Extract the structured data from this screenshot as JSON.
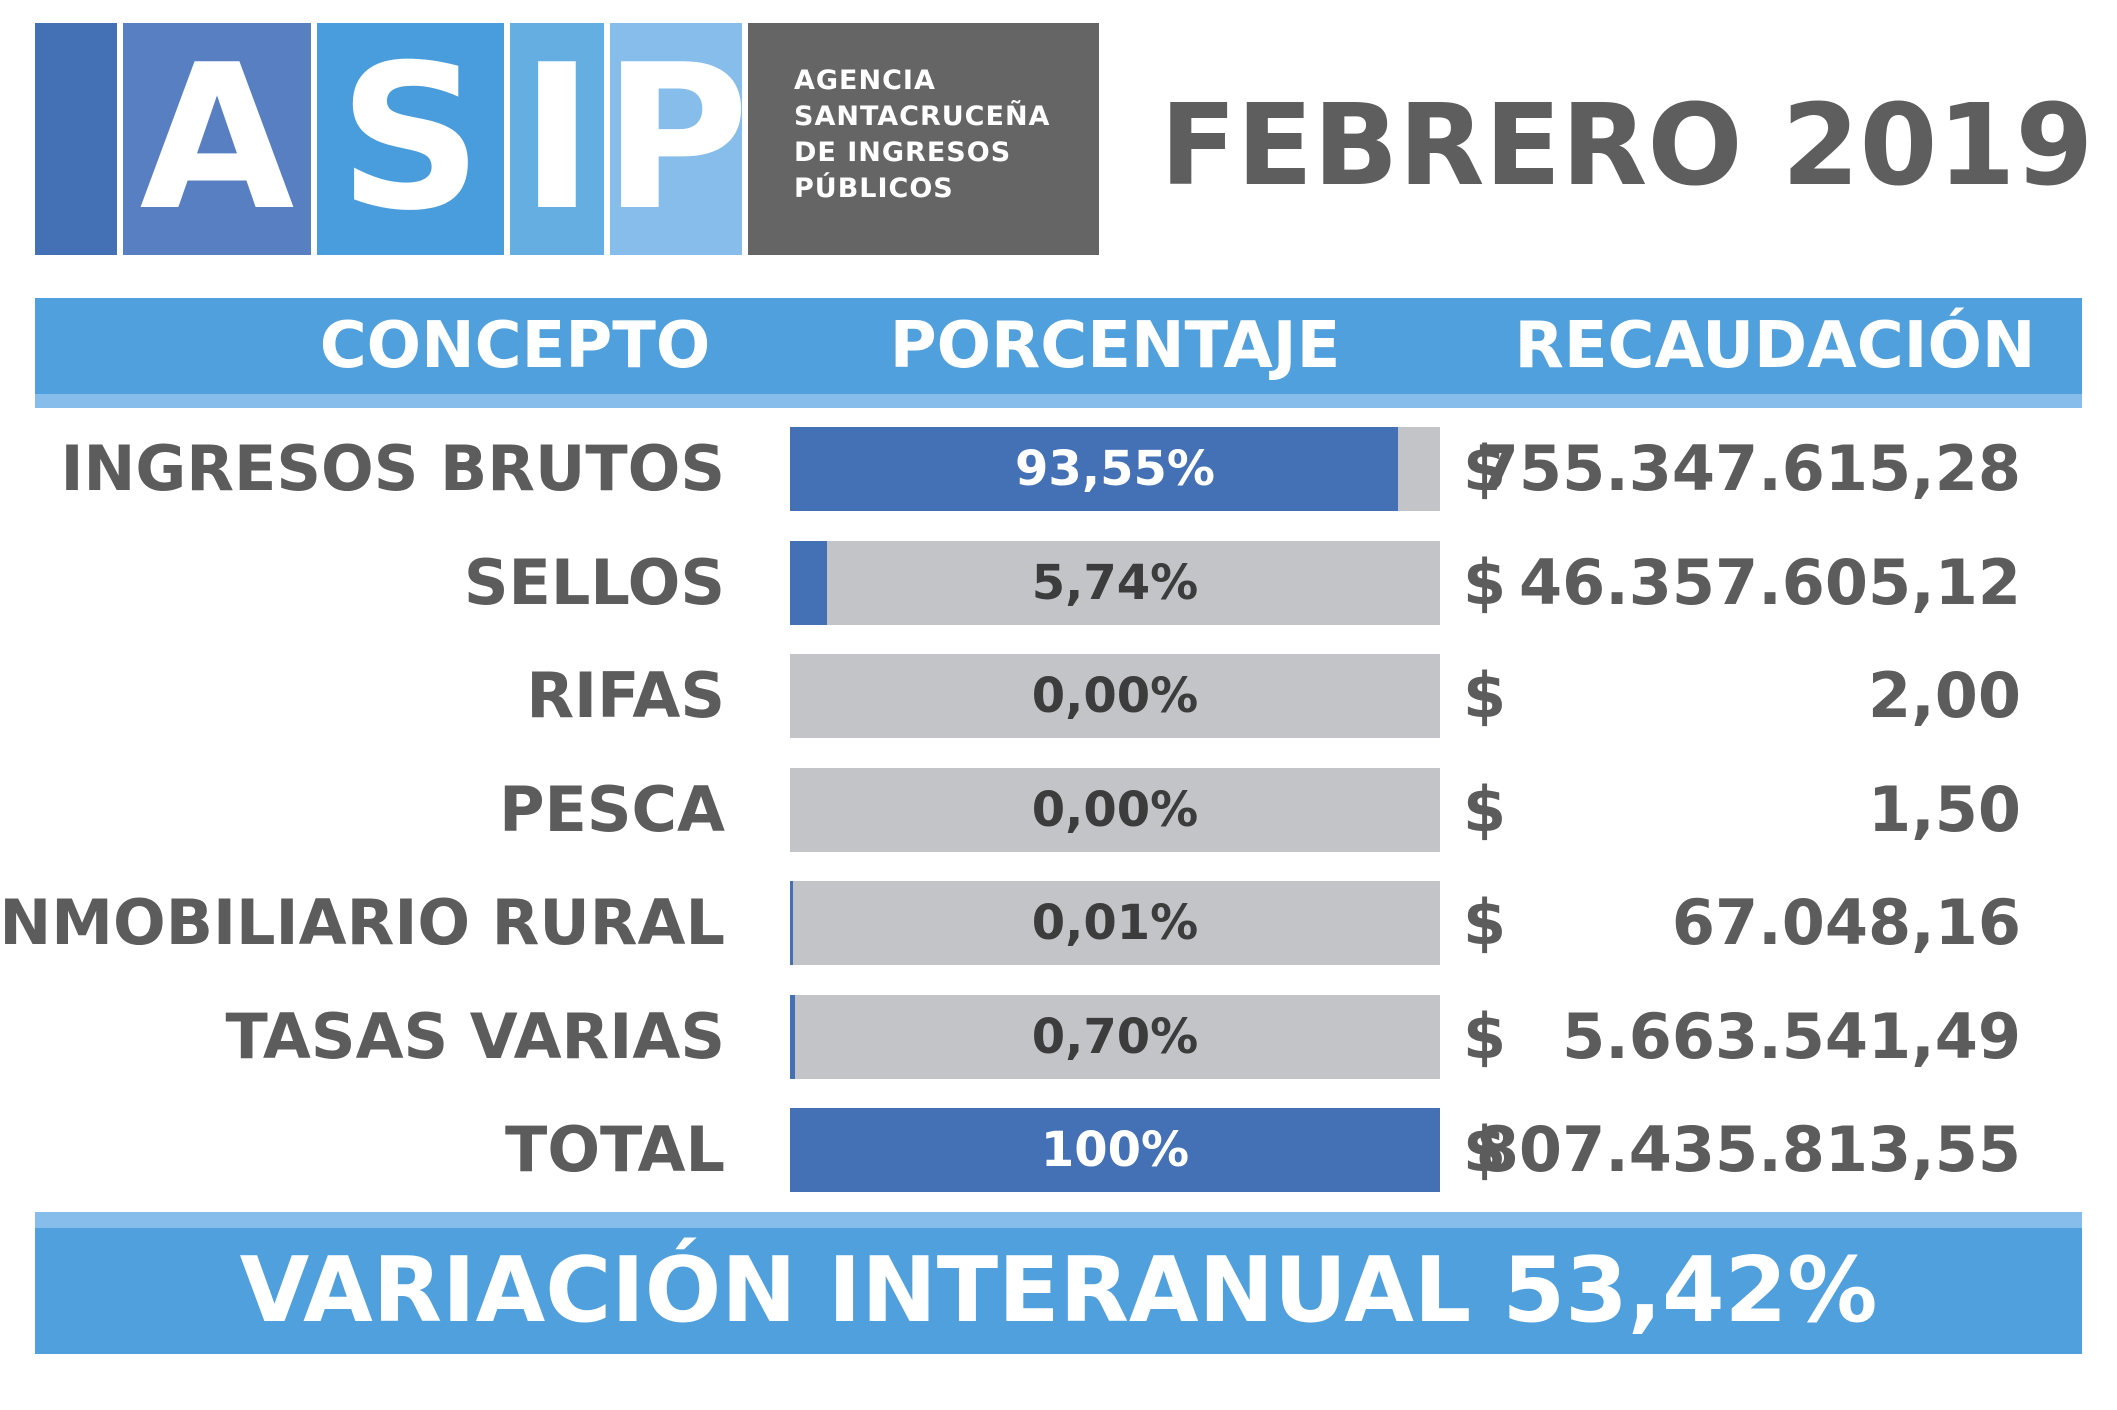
{
  "logo": {
    "letters": [
      "A",
      "S",
      "I",
      "P"
    ],
    "org_lines": [
      "AGENCIA",
      "SANTACRUCEÑA",
      "DE INGRESOS",
      "PÚBLICOS"
    ],
    "colors": {
      "block_1": "#4470b5",
      "block_2": "#587fc2",
      "block_3": "#4a9ddc",
      "block_4": "#65aee2",
      "block_5": "#86bdea",
      "org_bg": "#656565"
    }
  },
  "period": "FEBRERO 2019",
  "header": {
    "concepto": "CONCEPTO",
    "porcentaje": "PORCENTAJE",
    "recaudacion": "RECAUDACIÓN"
  },
  "colors": {
    "band": "#4fa0dc",
    "band_light": "#86bdea",
    "bar_fill": "#4470b5",
    "bar_track": "#c3c4c8",
    "text_dark": "#5c5c5c"
  },
  "chart_data": {
    "type": "bar",
    "categories": [
      "INGRESOS BRUTOS",
      "SELLOS",
      "RIFAS",
      "PESCA",
      "INMOBILIARIO RURAL",
      "TASAS VARIAS",
      "TOTAL"
    ],
    "values": [
      93.55,
      5.74,
      0.0,
      0.0,
      0.01,
      0.7,
      100
    ],
    "ylim": [
      0,
      100
    ],
    "rows": [
      {
        "concepto": "INGRESOS BRUTOS",
        "porcentaje": "93,55%",
        "value": 93.55,
        "currency": "$",
        "recaudacion": "755.347.615,28"
      },
      {
        "concepto": "SELLOS",
        "porcentaje": "5,74%",
        "value": 5.74,
        "currency": "$",
        "recaudacion": "46.357.605,12"
      },
      {
        "concepto": "RIFAS",
        "porcentaje": "0,00%",
        "value": 0.0,
        "currency": "$",
        "recaudacion": "2,00"
      },
      {
        "concepto": "PESCA",
        "porcentaje": "0,00%",
        "value": 0.0,
        "currency": "$",
        "recaudacion": "1,50"
      },
      {
        "concepto": "INMOBILIARIO RURAL",
        "porcentaje": "0,01%",
        "value": 0.01,
        "currency": "$",
        "recaudacion": "67.048,16"
      },
      {
        "concepto": "TASAS VARIAS",
        "porcentaje": "0,70%",
        "value": 0.7,
        "currency": "$",
        "recaudacion": "5.663.541,49"
      },
      {
        "concepto": "TOTAL",
        "porcentaje": "100%",
        "value": 100,
        "currency": "$",
        "recaudacion": "807.435.813,55"
      }
    ]
  },
  "footer": "VARIACIÓN INTERANUAL 53,42%"
}
